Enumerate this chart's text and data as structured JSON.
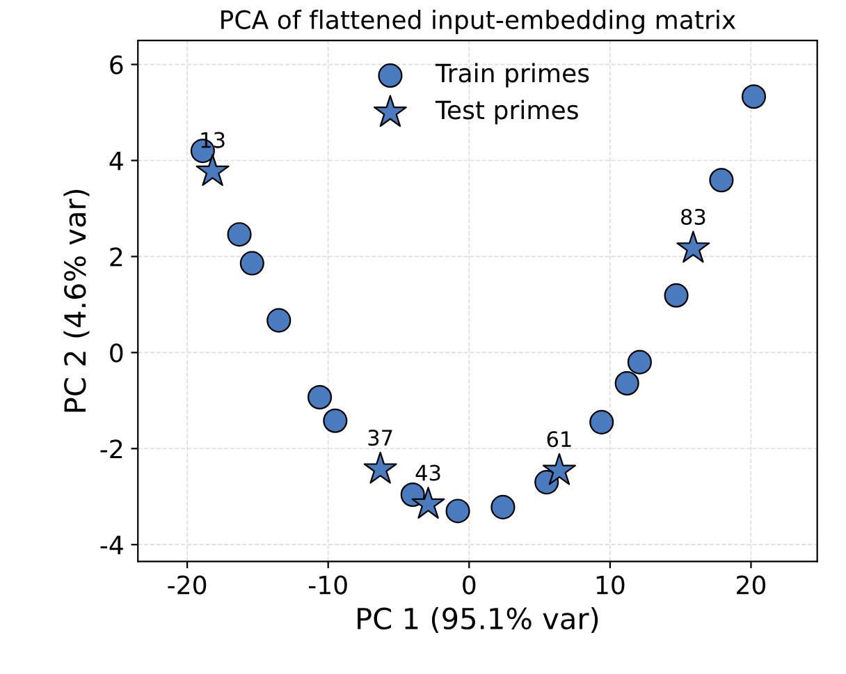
{
  "chart_data": {
    "type": "scatter",
    "title": "PCA of flattened input-embedding matrix",
    "xlabel": "PC 1 (95.1% var)",
    "ylabel": "PC 2 (4.6% var)",
    "series": [
      {
        "name": "Train primes",
        "color": "#4a7bbf",
        "marker": "circle",
        "x": [
          -18.9,
          -16.3,
          -15.4,
          -13.5,
          -10.6,
          -9.5,
          -4.0,
          -0.8,
          2.4,
          5.5,
          9.4,
          11.2,
          12.1,
          14.7,
          17.9,
          20.2
        ],
        "values": [
          4.2,
          2.46,
          1.86,
          0.67,
          -0.93,
          -1.42,
          -2.96,
          -3.3,
          -3.22,
          -2.7,
          -1.45,
          -0.64,
          -0.2,
          1.19,
          3.59,
          5.33
        ]
      },
      {
        "name": "Test primes",
        "color": "#4a7bbf",
        "marker": "star",
        "x": [
          -18.2,
          -6.3,
          -2.9,
          6.4,
          15.9
        ],
        "values": [
          3.77,
          -2.43,
          -3.16,
          -2.46,
          2.17
        ]
      }
    ],
    "annotations": [
      {
        "text": "13",
        "x": -18.2,
        "y": 3.77
      },
      {
        "text": "37",
        "x": -6.3,
        "y": -2.43
      },
      {
        "text": "43",
        "x": -2.9,
        "y": -3.16
      },
      {
        "text": "61",
        "x": 6.4,
        "y": -2.46
      },
      {
        "text": "83",
        "x": 15.9,
        "y": 2.17
      }
    ],
    "xlim": [
      -23.5,
      24.7
    ],
    "ylim": [
      -4.35,
      6.5
    ],
    "xticks": [
      -20,
      -10,
      0,
      10,
      20
    ],
    "yticks": [
      -4,
      -2,
      0,
      2,
      4,
      6
    ],
    "grid": true,
    "legend": "top"
  }
}
